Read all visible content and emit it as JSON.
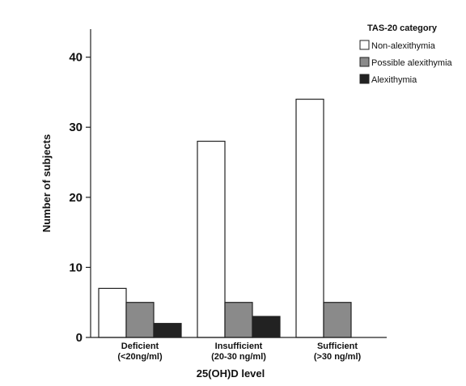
{
  "chart_data": {
    "type": "bar",
    "categories": [
      [
        "Deficient",
        "(<20ng/ml)"
      ],
      [
        "Insufficient",
        "(20-30 ng/ml)"
      ],
      [
        "Sufficient",
        "(>30 ng/ml)"
      ]
    ],
    "series": [
      {
        "name": "Non-alexithymia",
        "values": [
          7,
          28,
          34
        ],
        "color": "#ffffff"
      },
      {
        "name": "Possible alexithymia",
        "values": [
          5,
          5,
          5
        ],
        "color": "#8a8a8a"
      },
      {
        "name": "Alexithymia",
        "values": [
          2,
          3,
          0
        ],
        "color": "#222222"
      }
    ],
    "xlabel": "25(OH)D level",
    "ylabel": "Number of subjects",
    "ylim": [
      0,
      44
    ],
    "yticks": [
      0,
      10,
      20,
      30,
      40
    ],
    "legend_title": "TAS-20 category",
    "legend_position": "top-right",
    "grid": false
  }
}
